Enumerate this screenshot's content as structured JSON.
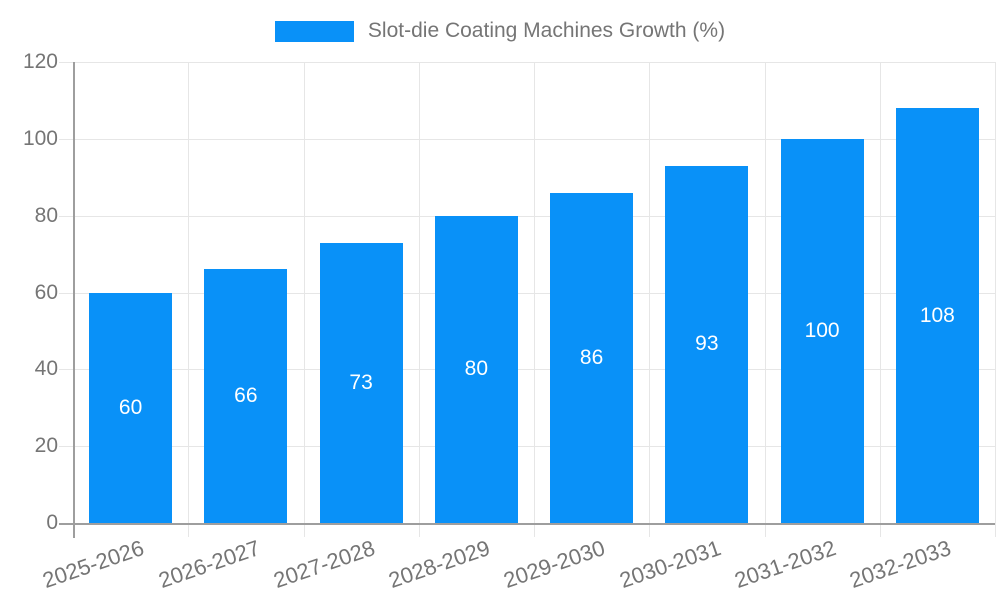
{
  "chart_data": {
    "type": "bar",
    "title": "",
    "legend": {
      "label": "Slot-die Coating Machines Growth (%)",
      "position": "top"
    },
    "categories": [
      "2025-2026",
      "2026-2027",
      "2027-2028",
      "2028-2029",
      "2029-2030",
      "2030-2031",
      "2031-2032",
      "2032-2033"
    ],
    "values": [
      60,
      66,
      73,
      80,
      86,
      93,
      100,
      108
    ],
    "xlabel": "",
    "ylabel": "",
    "ylim": [
      0,
      120
    ],
    "yticks": [
      0,
      20,
      40,
      60,
      80,
      100,
      120
    ],
    "grid": true,
    "bar_value_labels_inside": true,
    "colors": {
      "bar": "#0991f8",
      "bar_value_text": "#ffffff",
      "axis_text": "#757575",
      "axis_line": "#9e9e9e",
      "grid_line": "#e6e6e6"
    }
  }
}
